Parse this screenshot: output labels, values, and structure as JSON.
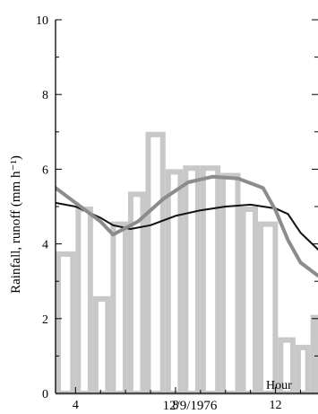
{
  "chart_data": {
    "type": "bar+line",
    "title": "",
    "xlabel": "12/9/1976",
    "x_unit_label": "Hour",
    "ylabel": "Rainfall, runoff (mm h⁻¹)",
    "xlim": [
      3.2,
      13.7
    ],
    "ylim": [
      0,
      10
    ],
    "x_ticks": [
      4,
      8,
      12
    ],
    "x_tick_labels": [
      "4",
      "8",
      "12"
    ],
    "y_ticks": [
      0,
      2,
      4,
      6,
      8,
      10
    ],
    "y_tick_labels": [
      "0",
      "2",
      "4",
      "6",
      "8",
      "10"
    ],
    "grid": false,
    "legend": "none",
    "colors": {
      "rainfall_bars": "#c8c8c8",
      "dark_series": "#111111",
      "grey_series": "#8c8c8c",
      "axis": "#000000"
    },
    "series": [
      {
        "kind": "bar",
        "x_start": [
          3.2,
          4.0,
          4.7,
          5.4,
          6.1,
          6.8,
          7.6,
          8.3,
          9.0,
          9.8,
          10.6,
          11.3,
          12.1,
          12.8,
          13.4
        ],
        "x_end": [
          4.0,
          4.7,
          5.4,
          6.1,
          6.8,
          7.6,
          8.3,
          9.0,
          9.8,
          10.6,
          11.3,
          12.1,
          12.8,
          13.4,
          13.7
        ],
        "values": [
          3.8,
          5.0,
          2.6,
          4.6,
          5.4,
          7.0,
          6.0,
          6.1,
          6.1,
          5.9,
          5.0,
          4.6,
          1.5,
          1.3,
          2.1
        ]
      },
      {
        "kind": "line",
        "style": "dark-thin",
        "x": [
          3.2,
          4.0,
          5.0,
          5.5,
          6.2,
          7.0,
          8.0,
          9.0,
          10.0,
          11.0,
          12.0,
          12.5,
          13.0,
          13.7
        ],
        "y": [
          5.1,
          5.0,
          4.7,
          4.5,
          4.4,
          4.5,
          4.75,
          4.9,
          5.0,
          5.05,
          4.95,
          4.8,
          4.3,
          3.85
        ]
      },
      {
        "kind": "line",
        "style": "grey-thick",
        "x": [
          3.2,
          4.0,
          5.0,
          5.5,
          6.5,
          7.5,
          8.5,
          9.5,
          10.5,
          11.5,
          12.0,
          12.5,
          13.0,
          13.7
        ],
        "y": [
          5.5,
          5.1,
          4.6,
          4.25,
          4.6,
          5.2,
          5.65,
          5.8,
          5.75,
          5.5,
          4.9,
          4.1,
          3.5,
          3.15
        ]
      }
    ]
  }
}
